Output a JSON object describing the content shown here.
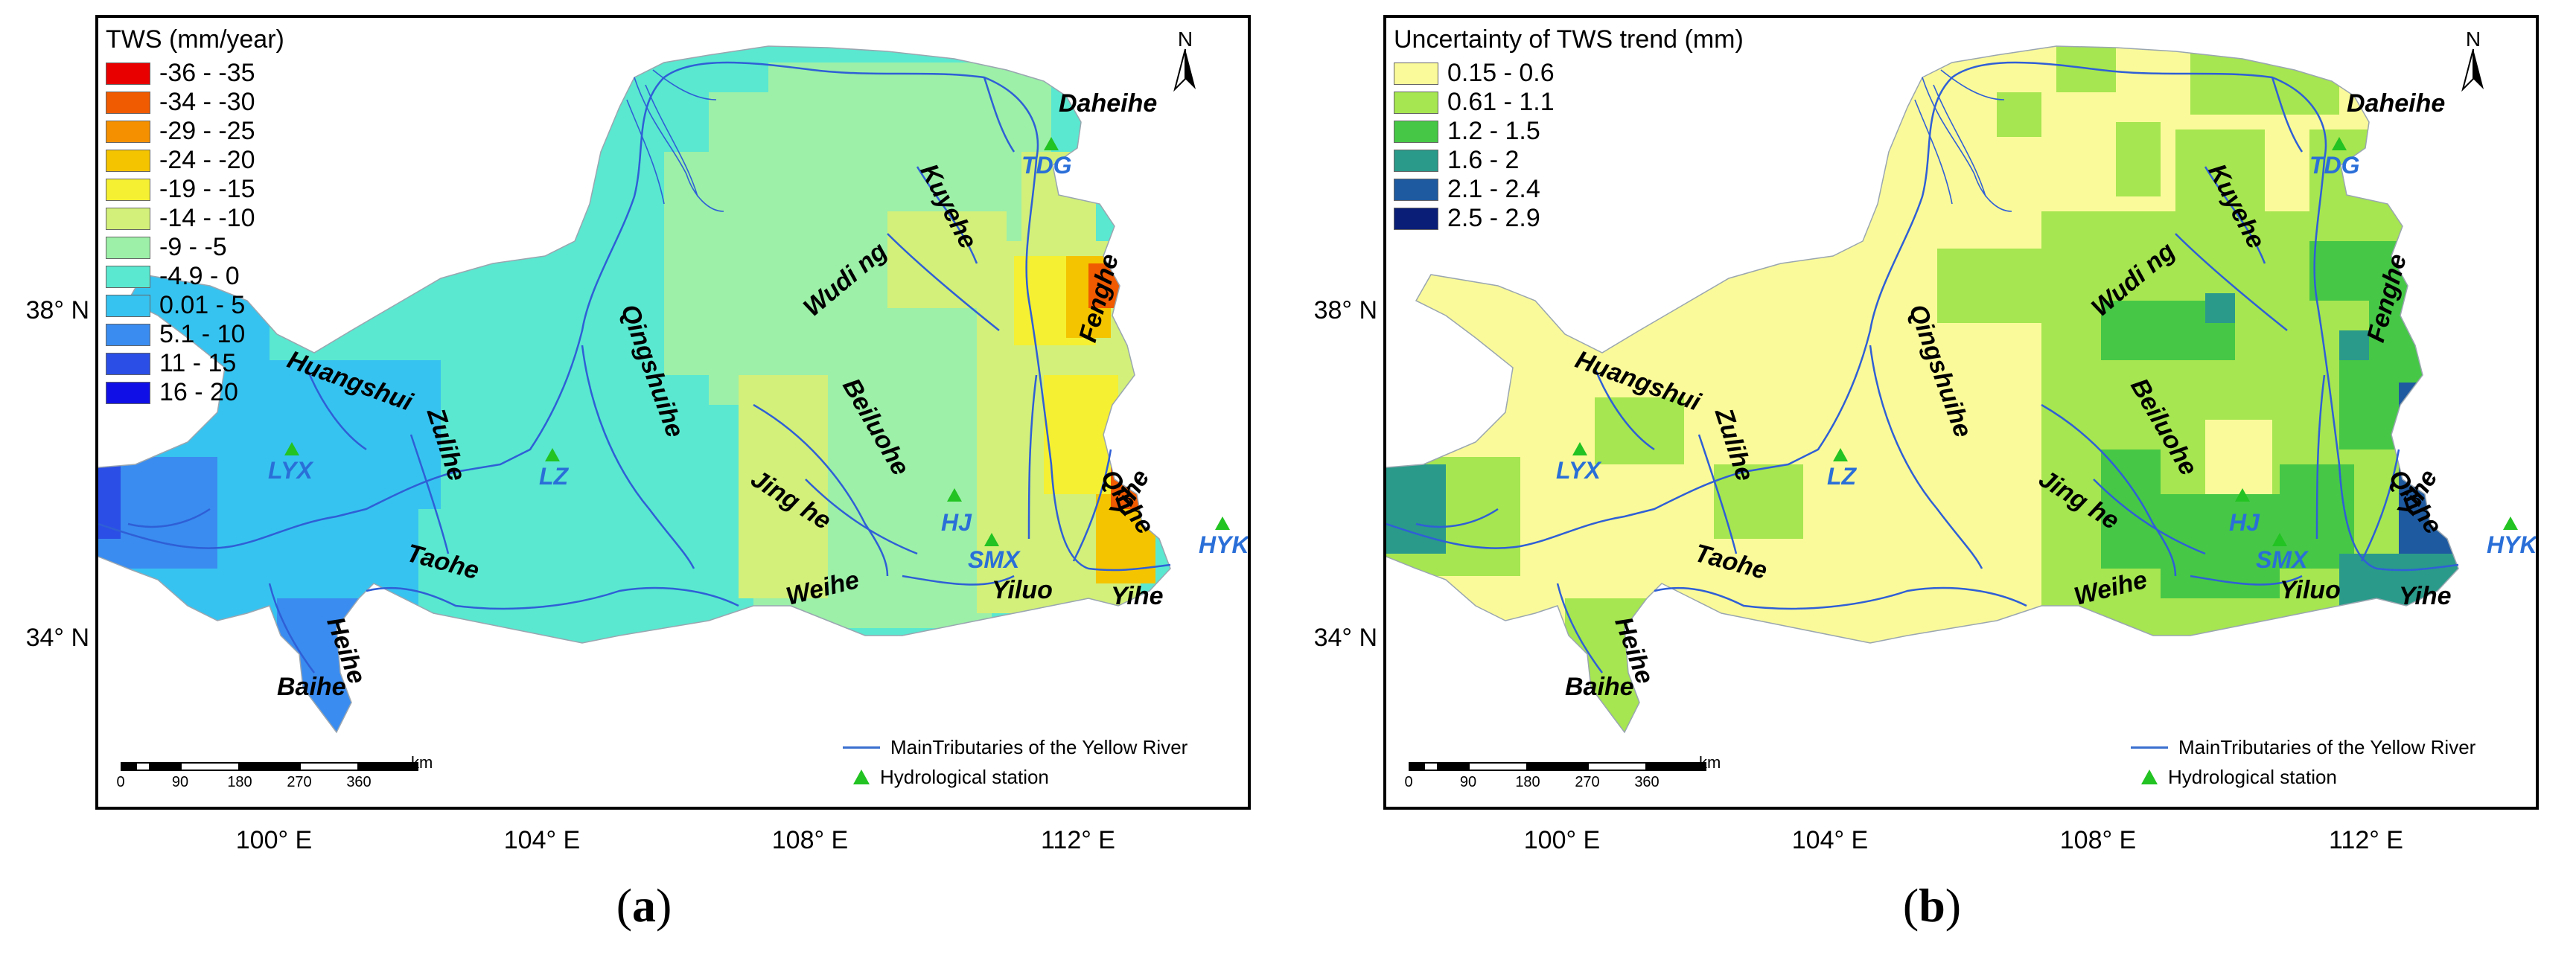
{
  "axes": {
    "lat_labels": [
      "38° N",
      "34° N"
    ],
    "lon_labels": [
      "100° E",
      "104° E",
      "108° E",
      "112° E"
    ]
  },
  "panel_a": {
    "caption_letter": "a",
    "legend_title": "TWS (mm/year)",
    "legend": [
      {
        "label": "-36 - -35",
        "color": "#e80000"
      },
      {
        "label": "-34 - -30",
        "color": "#f05a00"
      },
      {
        "label": "-29 - -25",
        "color": "#f59000"
      },
      {
        "label": "-24 - -20",
        "color": "#f5c400"
      },
      {
        "label": "-19 - -15",
        "color": "#f5f032"
      },
      {
        "label": "-14 - -10",
        "color": "#d2f07a"
      },
      {
        "label": "-9 - -5",
        "color": "#9cf0a8"
      },
      {
        "label": "-4.9 - 0",
        "color": "#5ae8d0"
      },
      {
        "label": "0.01 - 5",
        "color": "#37c3f0"
      },
      {
        "label": "5.1 - 10",
        "color": "#3a8cf0"
      },
      {
        "label": "11 - 15",
        "color": "#2a4ee6"
      },
      {
        "label": "16 - 20",
        "color": "#1010e6"
      }
    ]
  },
  "panel_b": {
    "caption_letter": "b",
    "legend_title": "Uncertainty of TWS trend (mm)",
    "legend": [
      {
        "label": "0.15 - 0.6",
        "color": "#fafa9a"
      },
      {
        "label": "0.61 - 1.1",
        "color": "#a6e650"
      },
      {
        "label": "1.2 - 1.5",
        "color": "#46c846"
      },
      {
        "label": "1.6 - 2",
        "color": "#2a9a8a"
      },
      {
        "label": "2.1 - 2.4",
        "color": "#1e5aa0"
      },
      {
        "label": "2.5 - 2.9",
        "color": "#0a1e78"
      }
    ]
  },
  "rivers": [
    "Daheihe",
    "Kuyehe",
    "Wudi ng",
    "Qingshuihe",
    "Huangshui",
    "Zulihe",
    "Beiluohe",
    "Fenghe",
    "Qinhe",
    "Jing he",
    "Taohe",
    "Weihe",
    "Yiluo",
    "Yihe",
    "Yihe",
    "Heihe",
    "Baihe"
  ],
  "stations": [
    "TDG",
    "LYX",
    "LZ",
    "HJ",
    "SMX",
    "HYK"
  ],
  "north_label": "N",
  "map_legend": {
    "line_label": "MainTributaries of the Yellow River",
    "station_label": "Hydrological station"
  },
  "scale": {
    "labels": [
      "0",
      "90",
      "180",
      "270",
      "360"
    ],
    "unit": "km"
  }
}
